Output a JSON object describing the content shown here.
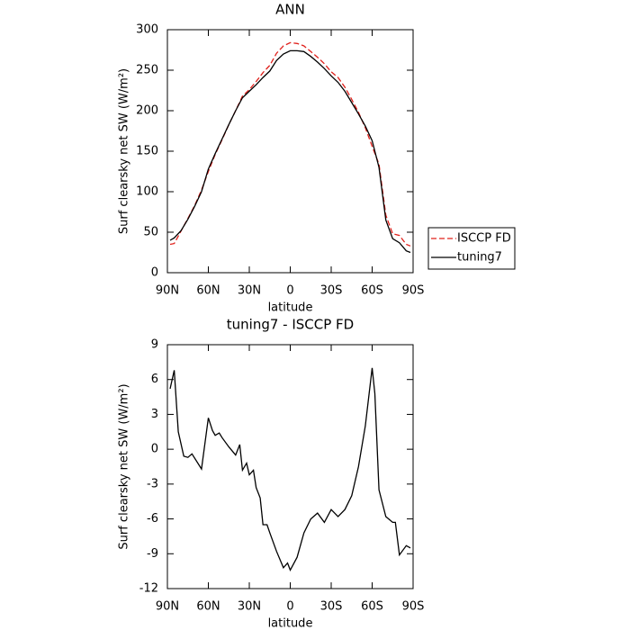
{
  "chart_data": [
    {
      "type": "line",
      "title": "ANN",
      "xlabel": "latitude",
      "ylabel": "Surf clearsky net SW (W/m²)",
      "x": [
        88,
        85,
        80,
        75,
        70,
        65,
        60,
        55,
        50,
        45,
        40,
        35,
        30,
        25,
        20,
        15,
        10,
        5,
        0,
        -5,
        -10,
        -15,
        -20,
        -25,
        -30,
        -35,
        -40,
        -45,
        -50,
        -55,
        -60,
        -65,
        -70,
        -75,
        -80,
        -85,
        -88
      ],
      "series": [
        {
          "name": "ISCCP FD",
          "color": "#e0201b",
          "line_style": "dashed",
          "values": [
            35,
            36,
            51.5,
            67,
            83,
            102,
            125,
            146,
            164,
            183,
            200,
            218,
            226,
            236,
            247,
            256,
            271,
            280,
            284,
            283,
            280,
            273,
            266,
            258,
            248,
            241,
            229,
            214,
            198,
            179,
            156,
            134,
            71,
            48,
            46,
            35,
            33
          ]
        },
        {
          "name": "tuning7",
          "color": "#000000",
          "line_style": "solid",
          "values": [
            40,
            43,
            52,
            66,
            82,
            100,
            128,
            147,
            165,
            183,
            200,
            216,
            224,
            232,
            241,
            249,
            262,
            270,
            274,
            274,
            273,
            267,
            260,
            252,
            243,
            235,
            224,
            210,
            196,
            181,
            163,
            130,
            65,
            42,
            37,
            27,
            25
          ]
        }
      ],
      "xlim": [
        90,
        -90
      ],
      "xticks": [
        {
          "value": 90,
          "label": "90N"
        },
        {
          "value": 60,
          "label": "60N"
        },
        {
          "value": 30,
          "label": "30N"
        },
        0,
        {
          "value": -30,
          "label": "30S"
        },
        {
          "value": -60,
          "label": "60S"
        },
        {
          "value": -90,
          "label": "90S"
        }
      ],
      "ylim": [
        0,
        300
      ],
      "yticks": [
        0,
        50,
        100,
        150,
        200,
        250,
        300
      ],
      "legend": "right"
    },
    {
      "type": "line",
      "title": "tuning7 - ISCCP FD",
      "xlabel": "latitude",
      "ylabel": "Surf clearsky net SW (W/m²)",
      "x": [
        88,
        85,
        82,
        78,
        75,
        72,
        65,
        60,
        57,
        55,
        52,
        50,
        45,
        40,
        37,
        35,
        32,
        30,
        27,
        25,
        22,
        20,
        17,
        15,
        10,
        5,
        2,
        0,
        -5,
        -10,
        -15,
        -20,
        -25,
        -30,
        -35,
        -40,
        -45,
        -50,
        -55,
        -60,
        -62,
        -65,
        -70,
        -75,
        -77,
        -80,
        -85,
        -88
      ],
      "series": [
        {
          "color": "#000000",
          "line_style": "solid",
          "values": [
            5.2,
            6.8,
            1.5,
            -0.6,
            -0.7,
            -0.4,
            -1.7,
            2.7,
            1.6,
            1.2,
            1.4,
            1.0,
            0.2,
            -0.5,
            0.4,
            -1.8,
            -1.2,
            -2.2,
            -1.8,
            -3.3,
            -4.2,
            -6.5,
            -6.5,
            -7.2,
            -8.8,
            -10.2,
            -9.8,
            -10.4,
            -9.3,
            -7.2,
            -6.0,
            -5.5,
            -6.3,
            -5.2,
            -5.8,
            -5.2,
            -4.0,
            -1.5,
            2.0,
            7.0,
            4.8,
            -3.5,
            -5.8,
            -6.3,
            -6.3,
            -9.1,
            -8.3,
            -8.5
          ]
        }
      ],
      "xlim": [
        90,
        -90
      ],
      "xticks": [
        {
          "value": 90,
          "label": "90N"
        },
        {
          "value": 60,
          "label": "60N"
        },
        {
          "value": 30,
          "label": "30N"
        },
        0,
        {
          "value": -30,
          "label": "30S"
        },
        {
          "value": -60,
          "label": "60S"
        },
        {
          "value": -90,
          "label": "90S"
        }
      ],
      "ylim": [
        -12,
        9
      ],
      "yticks": [
        -12,
        -9,
        -6,
        -3,
        0,
        3,
        6,
        9
      ]
    }
  ]
}
